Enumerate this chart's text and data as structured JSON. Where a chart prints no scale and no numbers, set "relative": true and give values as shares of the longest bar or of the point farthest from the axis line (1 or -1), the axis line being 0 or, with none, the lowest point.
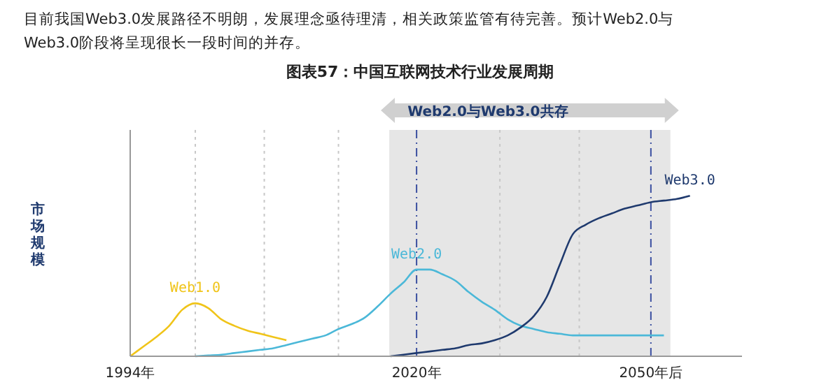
{
  "chart_data": {
    "type": "line",
    "title": "图表57：中国互联网技术行业发展周期",
    "ylabel": "市场规模",
    "relative": true,
    "legend": false,
    "grid": "x",
    "marker": "none",
    "line_style": "solid",
    "annotations": [
      "目前我国Web3.0发展路径不明朗，发展理念亟待理清，相关政策监管有待完善。预计Web2.0与Web3.0阶段将呈现很长一段时间的并存。",
      "Web2.0与Web3.0共存"
    ],
    "categories": [
      "1994年",
      null,
      null,
      null,
      null,
      null,
      null,
      null,
      null,
      null,
      null,
      null,
      null,
      null,
      null,
      null,
      null,
      null,
      null,
      null,
      null,
      null,
      "2020年",
      null,
      null,
      null,
      null,
      null,
      null,
      null,
      null,
      null,
      null,
      null,
      null,
      null,
      null,
      null,
      null,
      null,
      "2050年后",
      null,
      null,
      null,
      null,
      null,
      null,
      null
    ],
    "series": [
      {
        "name": "Web1.0",
        "color": "#f0c419",
        "values": [
          0,
          0.06,
          0.12,
          0.19,
          0.29,
          0.33,
          0.3,
          0.23,
          0.19,
          0.16,
          0.14,
          0.12,
          0.1,
          null,
          null,
          null,
          null,
          null,
          null,
          null,
          null,
          null,
          null,
          null,
          null,
          null,
          null,
          null,
          null,
          null,
          null,
          null,
          null,
          null,
          null,
          null,
          null,
          null,
          null,
          null,
          null,
          null,
          null,
          null,
          null,
          null,
          null,
          null
        ]
      },
      {
        "name": "Web2.0",
        "color": "#4bb8d8",
        "values": [
          null,
          null,
          null,
          null,
          null,
          0,
          0.005,
          0.01,
          0.02,
          0.03,
          0.04,
          0.05,
          0.07,
          0.09,
          0.11,
          0.13,
          0.17,
          0.2,
          0.24,
          0.31,
          0.39,
          0.46,
          0.54,
          0.54,
          0.51,
          0.47,
          0.4,
          0.34,
          0.29,
          0.23,
          0.19,
          0.17,
          0.15,
          0.14,
          0.13,
          0.13,
          0.13,
          0.13,
          0.13,
          0.13,
          0.13,
          0.13,
          null,
          null,
          null,
          null,
          null,
          null
        ]
      },
      {
        "name": "Web3.0",
        "color": "#1f3a6e",
        "values": [
          null,
          null,
          null,
          null,
          null,
          null,
          null,
          null,
          null,
          null,
          null,
          null,
          null,
          null,
          null,
          null,
          null,
          null,
          null,
          null,
          0,
          0.01,
          0.02,
          0.03,
          0.04,
          0.05,
          0.07,
          0.08,
          0.1,
          0.13,
          0.18,
          0.25,
          0.37,
          0.57,
          0.76,
          0.82,
          0.86,
          0.89,
          0.92,
          0.94,
          0.96,
          0.97,
          0.98,
          1,
          null,
          null,
          null,
          null
        ]
      }
    ]
  }
}
